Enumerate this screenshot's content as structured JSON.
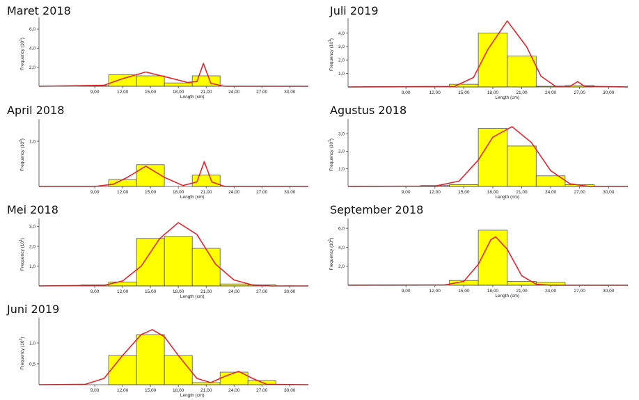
{
  "x_tick_labels": [
    "9,00",
    "12,00",
    "15,00",
    "18,00",
    "21,00",
    "24,00",
    "27,00",
    "30,00"
  ],
  "x_tick_values": [
    9,
    12,
    15,
    18,
    21,
    24,
    27,
    30
  ],
  "xlabel": "Length (cm)",
  "colors": {
    "bar_fill": "#ffff00",
    "bar_stroke": "#555555",
    "curve": "#e8242b",
    "axis": "#444444"
  },
  "chart_data": [
    {
      "type": "bar",
      "title": "Maret 2018",
      "ylabel": "Frequency (10^1)",
      "xlim": [
        3,
        32
      ],
      "ylim": [
        0,
        6.8
      ],
      "y_ticks": [
        2,
        4,
        6
      ],
      "y_tick_labels": [
        "2,0",
        "4,0",
        "6,0"
      ],
      "bins": [
        [
          7.5,
          10.5,
          0.05
        ],
        [
          10.5,
          13.5,
          1.2
        ],
        [
          13.5,
          16.5,
          1.1
        ],
        [
          16.5,
          19.5,
          0.35
        ],
        [
          19.5,
          22.5,
          1.1
        ]
      ],
      "curve": [
        [
          3,
          0
        ],
        [
          10,
          0.1
        ],
        [
          12,
          0.8
        ],
        [
          14.5,
          1.5
        ],
        [
          17,
          0.9
        ],
        [
          19,
          0.4
        ],
        [
          20,
          0.5
        ],
        [
          20.7,
          2.4
        ],
        [
          21.5,
          0.3
        ],
        [
          23,
          0
        ],
        [
          32,
          0
        ]
      ]
    },
    {
      "type": "bar",
      "title": "Juli 2019",
      "ylabel": "Frequency (10^1)",
      "xlim": [
        3,
        32
      ],
      "ylim": [
        0,
        4.8
      ],
      "y_ticks": [
        1,
        2,
        3,
        4
      ],
      "y_tick_labels": [
        "1,0",
        "2,0",
        "3,0",
        "4,0"
      ],
      "bins": [
        [
          13.5,
          16.5,
          0.2
        ],
        [
          16.5,
          19.5,
          4.0
        ],
        [
          19.5,
          22.5,
          2.3
        ],
        [
          22.5,
          25.5,
          0.05
        ],
        [
          25.5,
          28.5,
          0.1
        ]
      ],
      "curve": [
        [
          3,
          0
        ],
        [
          14,
          0.03
        ],
        [
          16,
          0.7
        ],
        [
          17.5,
          2.8
        ],
        [
          19.5,
          4.9
        ],
        [
          21.5,
          3.0
        ],
        [
          23,
          0.8
        ],
        [
          24.5,
          0.05
        ],
        [
          26,
          0.05
        ],
        [
          26.8,
          0.4
        ],
        [
          27.5,
          0.05
        ],
        [
          32,
          0
        ]
      ]
    },
    {
      "type": "bar",
      "title": "April 2018",
      "ylabel": "Frequency (10^2)",
      "xlim": [
        3,
        32
      ],
      "ylim": [
        0,
        1.4
      ],
      "y_ticks": [
        1
      ],
      "y_tick_labels": [
        "1,0"
      ],
      "bins": [
        [
          10.5,
          13.5,
          0.15
        ],
        [
          13.5,
          16.5,
          0.48
        ],
        [
          19.5,
          22.5,
          0.25
        ]
      ],
      "curve": [
        [
          3,
          0
        ],
        [
          9,
          0
        ],
        [
          11,
          0.05
        ],
        [
          12.5,
          0.2
        ],
        [
          14.5,
          0.45
        ],
        [
          16.5,
          0.2
        ],
        [
          18.5,
          0.02
        ],
        [
          20,
          0.1
        ],
        [
          20.8,
          0.55
        ],
        [
          21.6,
          0.1
        ],
        [
          23,
          0
        ],
        [
          32,
          0
        ]
      ]
    },
    {
      "type": "bar",
      "title": "Agustus 2018",
      "ylabel": "Frequency (10^1)",
      "xlim": [
        3,
        32
      ],
      "ylim": [
        0,
        3.6
      ],
      "y_ticks": [
        1,
        2,
        3
      ],
      "y_tick_labels": [
        "1,0",
        "2,0",
        "3,0"
      ],
      "bins": [
        [
          10.5,
          13.5,
          0.05
        ],
        [
          13.5,
          16.5,
          0.1
        ],
        [
          16.5,
          19.5,
          3.3
        ],
        [
          19.5,
          22.5,
          2.3
        ],
        [
          22.5,
          25.5,
          0.6
        ],
        [
          25.5,
          28.5,
          0.1
        ]
      ],
      "curve": [
        [
          3,
          0
        ],
        [
          12,
          0.02
        ],
        [
          14.5,
          0.3
        ],
        [
          16.5,
          1.5
        ],
        [
          18,
          2.8
        ],
        [
          20,
          3.4
        ],
        [
          22,
          2.5
        ],
        [
          24,
          0.9
        ],
        [
          26,
          0.15
        ],
        [
          28,
          0
        ],
        [
          32,
          0
        ]
      ]
    },
    {
      "type": "bar",
      "title": "Mei 2018",
      "ylabel": "Frequency (10^1)",
      "xlim": [
        3,
        32
      ],
      "ylim": [
        0,
        3.2
      ],
      "y_ticks": [
        1,
        2,
        3
      ],
      "y_tick_labels": [
        "1,0",
        "2,0",
        "3,0"
      ],
      "bins": [
        [
          7.5,
          10.5,
          0.05
        ],
        [
          10.5,
          13.5,
          0.2
        ],
        [
          13.5,
          16.5,
          2.4
        ],
        [
          16.5,
          19.5,
          2.5
        ],
        [
          19.5,
          22.5,
          1.9
        ],
        [
          22.5,
          25.5,
          0.1
        ],
        [
          25.5,
          28.5,
          0.05
        ]
      ],
      "curve": [
        [
          3,
          0
        ],
        [
          10,
          0.03
        ],
        [
          12,
          0.25
        ],
        [
          14,
          1.0
        ],
        [
          16,
          2.4
        ],
        [
          18,
          3.2
        ],
        [
          20,
          2.6
        ],
        [
          22,
          1.1
        ],
        [
          24,
          0.3
        ],
        [
          26,
          0.05
        ],
        [
          28,
          0
        ],
        [
          32,
          0
        ]
      ]
    },
    {
      "type": "bar",
      "title": "September 2018",
      "ylabel": "Frequency (10^1)",
      "xlim": [
        3,
        32
      ],
      "ylim": [
        0,
        6.6
      ],
      "y_ticks": [
        2,
        4,
        6
      ],
      "y_tick_labels": [
        "2,0",
        "4,0",
        "6,0"
      ],
      "bins": [
        [
          13.5,
          16.5,
          0.5
        ],
        [
          16.5,
          19.5,
          5.8
        ],
        [
          19.5,
          22.5,
          0.4
        ],
        [
          22.5,
          25.5,
          0.3
        ]
      ],
      "curve": [
        [
          3,
          0
        ],
        [
          13,
          0.02
        ],
        [
          15,
          0.4
        ],
        [
          16.5,
          2.2
        ],
        [
          17.8,
          4.8
        ],
        [
          18.3,
          5.1
        ],
        [
          19.5,
          3.8
        ],
        [
          21,
          1.0
        ],
        [
          22.5,
          0.1
        ],
        [
          24,
          0
        ],
        [
          32,
          0
        ]
      ]
    },
    {
      "type": "bar",
      "title": "Juni 2019",
      "ylabel": "Frequency (10^1)",
      "xlim": [
        3,
        32
      ],
      "ylim": [
        0,
        1.5
      ],
      "y_ticks": [
        0.5,
        1
      ],
      "y_tick_labels": [
        "0,5",
        "1,0"
      ],
      "bins": [
        [
          10.5,
          13.5,
          0.7
        ],
        [
          13.5,
          16.5,
          1.2
        ],
        [
          16.5,
          19.5,
          0.7
        ],
        [
          19.5,
          22.5,
          0.05
        ],
        [
          22.5,
          25.5,
          0.3
        ],
        [
          25.5,
          28.5,
          0.1
        ]
      ],
      "curve": [
        [
          3,
          0
        ],
        [
          8,
          0.01
        ],
        [
          10,
          0.15
        ],
        [
          12,
          0.7
        ],
        [
          14,
          1.2
        ],
        [
          15.2,
          1.32
        ],
        [
          16.5,
          1.15
        ],
        [
          18,
          0.7
        ],
        [
          20,
          0.15
        ],
        [
          21.5,
          0.05
        ],
        [
          23,
          0.2
        ],
        [
          24.5,
          0.32
        ],
        [
          26,
          0.15
        ],
        [
          27.5,
          0.01
        ],
        [
          32,
          0
        ]
      ]
    }
  ]
}
